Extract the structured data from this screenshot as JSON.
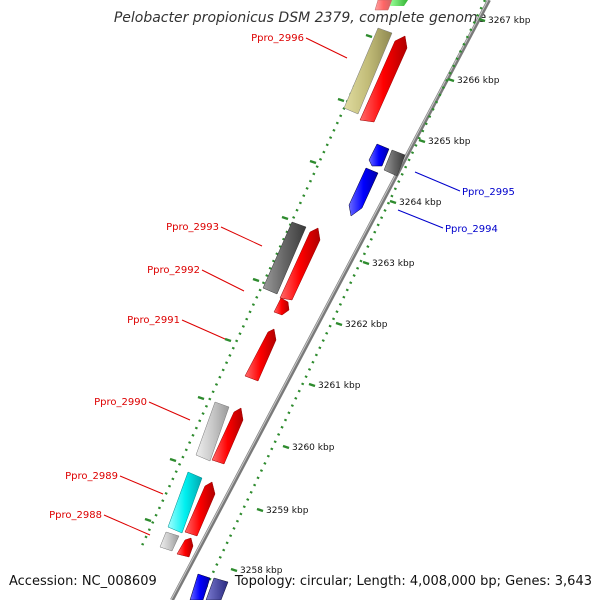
{
  "title": "Pelobacter propionicus DSM 2379, complete genome",
  "footer": {
    "accession": "Accession: NC_008609",
    "summary": "Topology: circular; Length: 4,008,000 bp; Genes: 3,643"
  },
  "colors": {
    "backbone": "#8a8a8a",
    "tick": "#2e8b2e",
    "forward_label": "#dd0000",
    "reverse_label": "#0000cc"
  },
  "ticks": [
    {
      "label": "3267 kbp"
    },
    {
      "label": "3266 kbp"
    },
    {
      "label": "3265 kbp"
    },
    {
      "label": "3264 kbp"
    },
    {
      "label": "3263 kbp"
    },
    {
      "label": "3262 kbp"
    },
    {
      "label": "3261 kbp"
    },
    {
      "label": "3260 kbp"
    },
    {
      "label": "3259 kbp"
    },
    {
      "label": "3258 kbp"
    }
  ],
  "gene_labels": [
    {
      "name": "Ppro_2996",
      "strand": "forward"
    },
    {
      "name": "Ppro_2995",
      "strand": "reverse"
    },
    {
      "name": "Ppro_2994",
      "strand": "reverse"
    },
    {
      "name": "Ppro_2993",
      "strand": "forward"
    },
    {
      "name": "Ppro_2992",
      "strand": "forward"
    },
    {
      "name": "Ppro_2991",
      "strand": "forward"
    },
    {
      "name": "Ppro_2990",
      "strand": "forward"
    },
    {
      "name": "Ppro_2989",
      "strand": "forward"
    },
    {
      "name": "Ppro_2988",
      "strand": "forward"
    }
  ]
}
